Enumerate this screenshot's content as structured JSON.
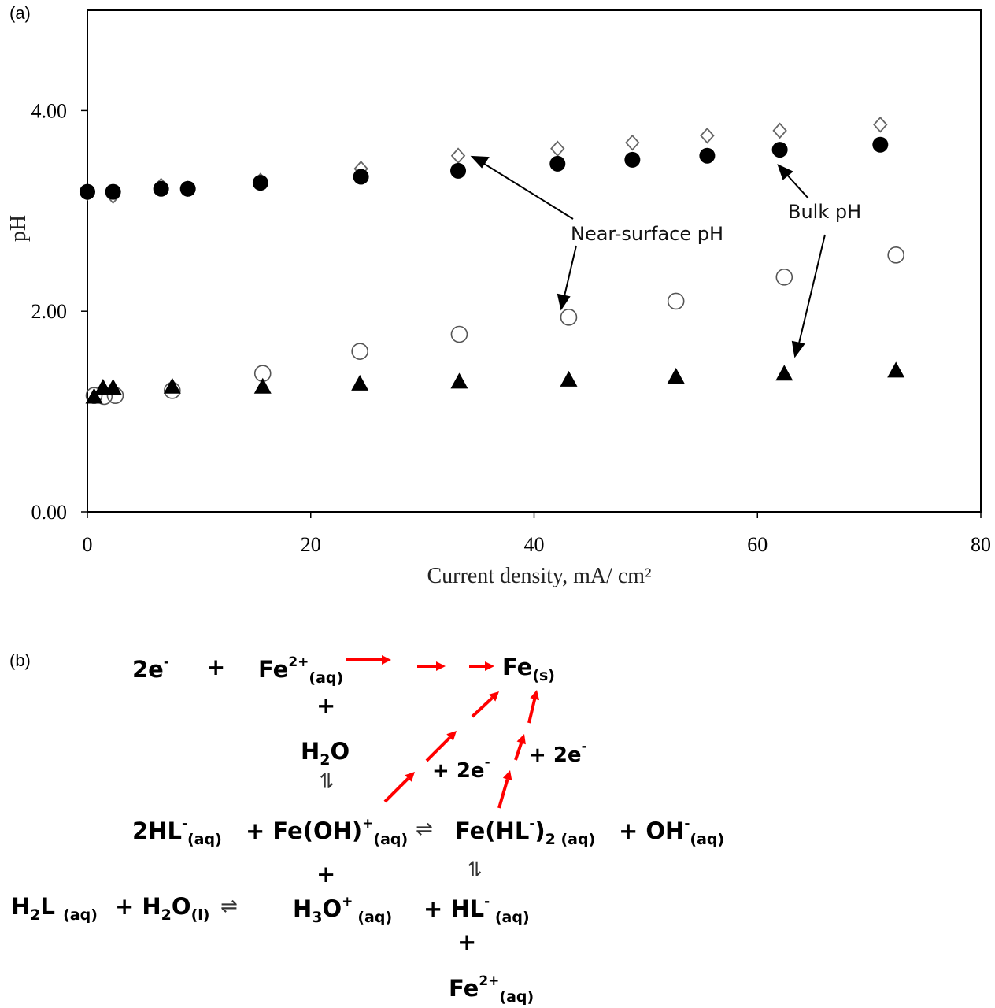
{
  "panel_a_label": "(a)",
  "panel_b_label": "(b)",
  "chart_data": {
    "type": "scatter",
    "xlabel": "Current density, mA/ cm²",
    "ylabel": "pH",
    "xlim": [
      0,
      80
    ],
    "ylim": [
      0,
      5
    ],
    "x_ticks": [
      "0",
      "20",
      "40",
      "60",
      "80"
    ],
    "y_ticks": [
      "0.00",
      "2.00",
      "4.00"
    ],
    "grid": false,
    "annotations": [
      "Near-surface pH",
      "Bulk pH"
    ],
    "series": [
      {
        "marker": "open-diamond",
        "x": [
          0,
          2.3,
          6.6,
          9,
          15.5,
          24.5,
          33.2,
          42.1,
          48.8,
          55.5,
          62,
          71
        ],
        "y": [
          3.18,
          3.15,
          3.25,
          3.22,
          3.3,
          3.42,
          3.55,
          3.62,
          3.68,
          3.75,
          3.8,
          3.86
        ]
      },
      {
        "marker": "filled-circle",
        "x": [
          0,
          2.3,
          6.6,
          9,
          15.5,
          24.5,
          33.2,
          42.1,
          48.8,
          55.5,
          62,
          71
        ],
        "y": [
          3.19,
          3.19,
          3.22,
          3.22,
          3.28,
          3.34,
          3.4,
          3.47,
          3.51,
          3.55,
          3.61,
          3.66
        ]
      },
      {
        "marker": "open-circle",
        "x": [
          0.6,
          1.5,
          2.5,
          7.6,
          15.7,
          24.4,
          33.3,
          43.1,
          52.7,
          62.4,
          72.4
        ],
        "y": [
          1.16,
          1.15,
          1.16,
          1.21,
          1.38,
          1.6,
          1.77,
          1.94,
          2.1,
          2.34,
          2.56
        ]
      },
      {
        "marker": "filled-triangle",
        "x": [
          0.6,
          1.4,
          2.3,
          7.6,
          15.7,
          24.4,
          33.3,
          43.1,
          52.7,
          62.4,
          72.4
        ],
        "y": [
          1.15,
          1.24,
          1.24,
          1.25,
          1.25,
          1.28,
          1.3,
          1.32,
          1.35,
          1.38,
          1.41
        ]
      }
    ]
  },
  "scheme": {
    "top_2e": [
      "2e",
      "-"
    ],
    "top_plus": "+",
    "top_fe2": [
      "Fe",
      "2+",
      "(aq)"
    ],
    "fe_s": [
      "Fe",
      "(s)"
    ],
    "plus_below_fe2": "+",
    "h2o": [
      "H",
      "2",
      "O"
    ],
    "eq_vertical_1": "⇌",
    "plus_2e_a": [
      "+ 2e",
      "-"
    ],
    "plus_2e_b": [
      "+ 2e",
      "-"
    ],
    "hl2": [
      "2HL",
      "-",
      "(aq)"
    ],
    "feoh": [
      "+ Fe(OH)",
      "+",
      "(aq)"
    ],
    "eq_mid": "⇌",
    "fehl2": [
      "Fe(HL",
      "-",
      ")",
      "2 (aq)"
    ],
    "oh": [
      "+ OH",
      "-",
      "(aq)"
    ],
    "plus_below_feoh": "+",
    "eq_vertical_2": "⇌",
    "h2l": [
      "H",
      "2",
      "L ",
      "(aq)"
    ],
    "h2o_l": [
      "+ H",
      "2",
      "O",
      "(l)"
    ],
    "eq_bottom": "⇌",
    "h3o": [
      "H",
      "3",
      "O",
      "+ ",
      "(aq)"
    ],
    "hl": [
      "+ HL",
      "-",
      " (aq)"
    ],
    "plus_below_hl": "+",
    "bottom_fe2": [
      "Fe",
      "2+",
      "(aq)"
    ],
    "arrow_color": "#ff0000"
  }
}
